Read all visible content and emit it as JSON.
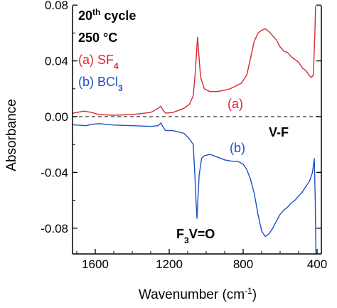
{
  "chart_data": {
    "type": "line",
    "xlabel": "Wavenumber (cm",
    "xlabel_sup": "-1",
    "xlabel_close": ")",
    "ylabel": "Absorbance",
    "xlim": [
      1800,
      400
    ],
    "ylim": [
      -0.1,
      0.08
    ],
    "x_reversed": true,
    "x_ticks": [
      1600,
      1200,
      800,
      400
    ],
    "y_ticks": [
      -0.08,
      -0.04,
      0.0,
      0.04,
      0.08
    ],
    "y_tick_labels": [
      "-0.08",
      "-0.04",
      "0.00",
      "0.04",
      "0.08"
    ],
    "zero_line": {
      "y": 0,
      "style": "dashed"
    },
    "annotations": {
      "cycle_main": "20",
      "cycle_sup": "th",
      "cycle_rest": " cycle",
      "temperature": "250 °C",
      "series_a_label": "(a) SF",
      "series_a_sub": "4",
      "series_b_label": "(b) BCl",
      "series_b_sub": "3",
      "curve_a_tag": "(a)",
      "curve_b_tag": "(b)",
      "vf_label": "V-F",
      "vo_pre": "F",
      "vo_sub": "3",
      "vo_post": "V=O"
    },
    "colors": {
      "series_a": "#d9282f",
      "series_b": "#1f4fc9",
      "axis": "#000000"
    },
    "series": [
      {
        "key": "a",
        "color": "#d9282f",
        "points": [
          [
            1820,
            0.0005
          ],
          [
            1760,
            0.0015
          ],
          [
            1700,
            0.003
          ],
          [
            1660,
            0.004
          ],
          [
            1620,
            0.003
          ],
          [
            1580,
            0.0015
          ],
          [
            1500,
            0.001
          ],
          [
            1400,
            0.0015
          ],
          [
            1300,
            0.003
          ],
          [
            1260,
            0.006
          ],
          [
            1245,
            0.0075
          ],
          [
            1235,
            0.005
          ],
          [
            1220,
            0.0025
          ],
          [
            1180,
            0.003
          ],
          [
            1120,
            0.006
          ],
          [
            1090,
            0.009
          ],
          [
            1070,
            0.015
          ],
          [
            1060,
            0.03
          ],
          [
            1052,
            0.046
          ],
          [
            1047,
            0.057
          ],
          [
            1040,
            0.045
          ],
          [
            1030,
            0.028
          ],
          [
            1010,
            0.02
          ],
          [
            980,
            0.018
          ],
          [
            940,
            0.018
          ],
          [
            900,
            0.019
          ],
          [
            870,
            0.02
          ],
          [
            840,
            0.022
          ],
          [
            810,
            0.024
          ],
          [
            780,
            0.03
          ],
          [
            760,
            0.042
          ],
          [
            740,
            0.054
          ],
          [
            720,
            0.06
          ],
          [
            700,
            0.062
          ],
          [
            680,
            0.063
          ],
          [
            660,
            0.061
          ],
          [
            640,
            0.058
          ],
          [
            620,
            0.055
          ],
          [
            600,
            0.05
          ],
          [
            580,
            0.047
          ],
          [
            560,
            0.046
          ],
          [
            540,
            0.043
          ],
          [
            520,
            0.041
          ],
          [
            500,
            0.039
          ],
          [
            480,
            0.035
          ],
          [
            460,
            0.033
          ],
          [
            445,
            0.03
          ],
          [
            430,
            0.028
          ],
          [
            420,
            0.03
          ],
          [
            412,
            0.06
          ],
          [
            408,
            0.08
          ]
        ]
      },
      {
        "key": "b",
        "color": "#1f4fc9",
        "points": [
          [
            1820,
            -0.005
          ],
          [
            1760,
            -0.0055
          ],
          [
            1700,
            -0.006
          ],
          [
            1650,
            -0.0065
          ],
          [
            1620,
            -0.0055
          ],
          [
            1580,
            -0.005
          ],
          [
            1500,
            -0.006
          ],
          [
            1400,
            -0.0065
          ],
          [
            1300,
            -0.007
          ],
          [
            1260,
            -0.0065
          ],
          [
            1245,
            -0.0045
          ],
          [
            1235,
            -0.007
          ],
          [
            1220,
            -0.01
          ],
          [
            1180,
            -0.01
          ],
          [
            1120,
            -0.012
          ],
          [
            1090,
            -0.016
          ],
          [
            1070,
            -0.02
          ],
          [
            1062,
            -0.04
          ],
          [
            1055,
            -0.06
          ],
          [
            1050,
            -0.073
          ],
          [
            1045,
            -0.06
          ],
          [
            1038,
            -0.042
          ],
          [
            1025,
            -0.03
          ],
          [
            1010,
            -0.028
          ],
          [
            980,
            -0.027
          ],
          [
            940,
            -0.029
          ],
          [
            900,
            -0.031
          ],
          [
            860,
            -0.032
          ],
          [
            830,
            -0.032
          ],
          [
            800,
            -0.034
          ],
          [
            780,
            -0.038
          ],
          [
            760,
            -0.045
          ],
          [
            740,
            -0.055
          ],
          [
            720,
            -0.07
          ],
          [
            700,
            -0.082
          ],
          [
            680,
            -0.086
          ],
          [
            660,
            -0.084
          ],
          [
            640,
            -0.08
          ],
          [
            620,
            -0.075
          ],
          [
            600,
            -0.07
          ],
          [
            580,
            -0.067
          ],
          [
            560,
            -0.065
          ],
          [
            540,
            -0.062
          ],
          [
            520,
            -0.06
          ],
          [
            500,
            -0.057
          ],
          [
            480,
            -0.054
          ],
          [
            460,
            -0.05
          ],
          [
            440,
            -0.046
          ],
          [
            425,
            -0.04
          ],
          [
            415,
            -0.03
          ],
          [
            410,
            -0.06
          ],
          [
            406,
            -0.1
          ]
        ]
      }
    ]
  }
}
